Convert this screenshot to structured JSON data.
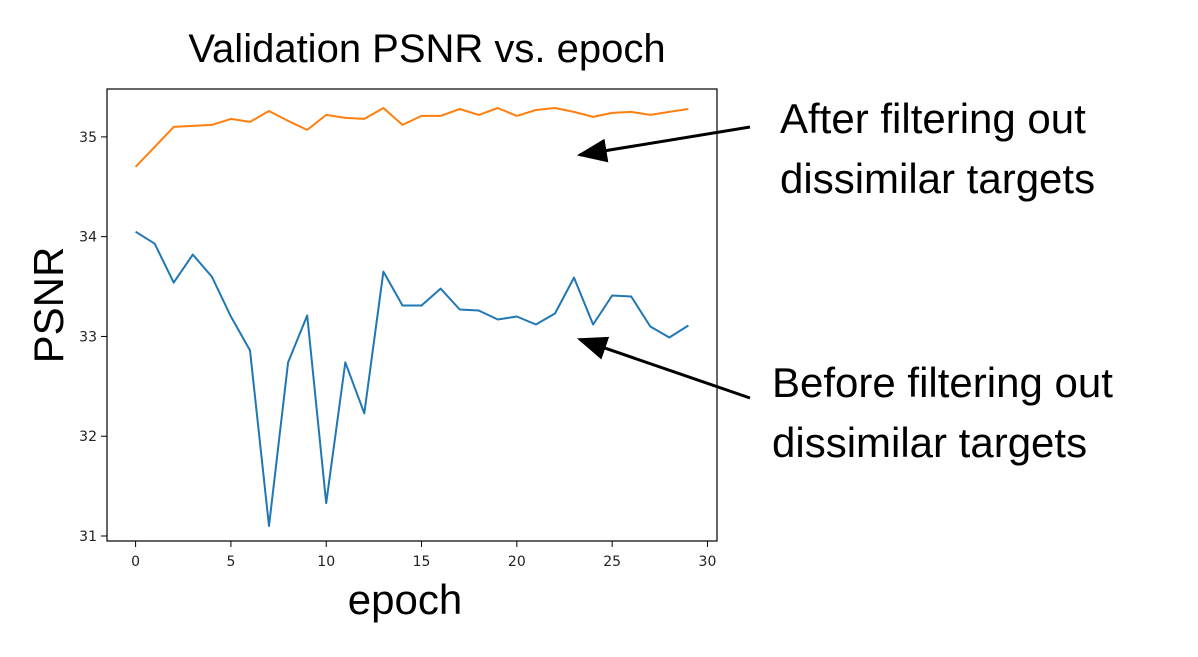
{
  "chart_data": {
    "type": "line",
    "title": "Validation PSNR vs. epoch",
    "xlabel": "epoch",
    "ylabel": "PSNR",
    "xlim": [
      -1.5,
      30.5
    ],
    "ylim": [
      30.95,
      35.48
    ],
    "xticks": [
      0,
      5,
      10,
      15,
      20,
      25,
      30
    ],
    "yticks": [
      31,
      32,
      33,
      34,
      35
    ],
    "grid": false,
    "x": [
      0,
      1,
      2,
      3,
      4,
      5,
      6,
      7,
      8,
      9,
      10,
      11,
      12,
      13,
      14,
      15,
      16,
      17,
      18,
      19,
      20,
      21,
      22,
      23,
      24,
      25,
      26,
      27,
      28,
      29
    ],
    "series": [
      {
        "color": "#1f77b4",
        "values": [
          34.05,
          33.93,
          33.54,
          33.82,
          33.6,
          33.2,
          32.86,
          31.1,
          32.74,
          33.21,
          31.33,
          32.74,
          32.23,
          33.65,
          33.31,
          33.31,
          33.48,
          33.27,
          33.26,
          33.17,
          33.2,
          33.12,
          33.23,
          33.59,
          33.12,
          33.41,
          33.4,
          33.1,
          32.99,
          33.11
        ]
      },
      {
        "color": "#ff7f0e",
        "values": [
          34.7,
          34.9,
          35.1,
          35.11,
          35.12,
          35.18,
          35.15,
          35.26,
          35.16,
          35.07,
          35.22,
          35.19,
          35.18,
          35.29,
          35.12,
          35.21,
          35.21,
          35.28,
          35.22,
          35.29,
          35.21,
          35.27,
          35.29,
          35.25,
          35.2,
          35.24,
          35.25,
          35.22,
          35.25,
          35.28
        ]
      }
    ],
    "annotations": [
      {
        "lines": [
          "After filtering out",
          "dissimilar targets"
        ],
        "target": {
          "x": 23.3,
          "y": 34.82
        }
      },
      {
        "lines": [
          "Before filtering out",
          "dissimilar targets"
        ],
        "target": {
          "x": 23.3,
          "y": 32.97
        }
      }
    ]
  }
}
